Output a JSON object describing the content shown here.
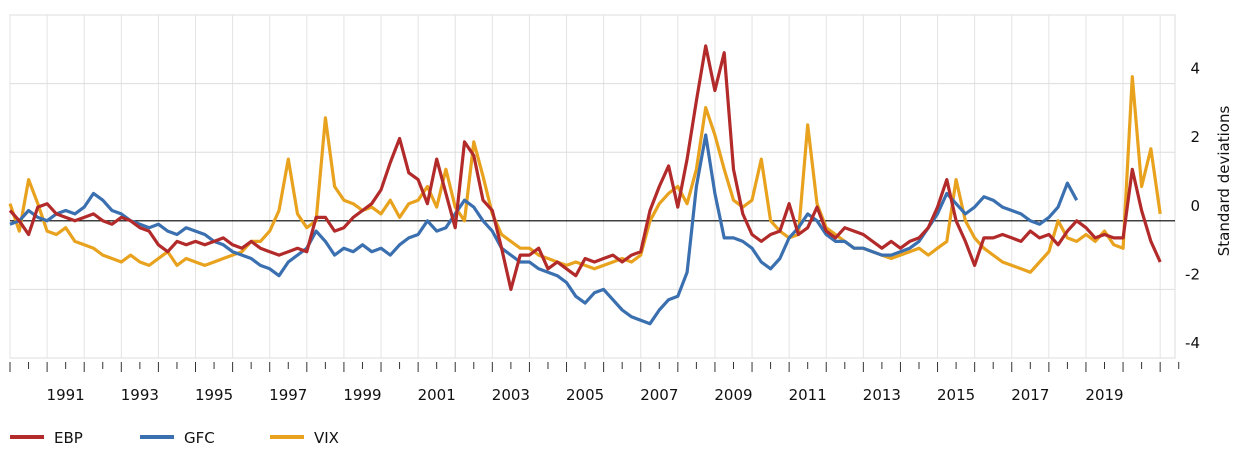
{
  "chart_data": {
    "type": "line",
    "y_label": "Standard deviations",
    "x": [
      1990,
      1990.25,
      1990.5,
      1990.75,
      1991,
      1991.25,
      1991.5,
      1991.75,
      1992,
      1992.25,
      1992.5,
      1992.75,
      1993,
      1993.25,
      1993.5,
      1993.75,
      1994,
      1994.25,
      1994.5,
      1994.75,
      1995,
      1995.25,
      1995.5,
      1995.75,
      1996,
      1996.25,
      1996.5,
      1996.75,
      1997,
      1997.25,
      1997.5,
      1997.75,
      1998,
      1998.25,
      1998.5,
      1998.75,
      1999,
      1999.25,
      1999.5,
      1999.75,
      2000,
      2000.25,
      2000.5,
      2000.75,
      2001,
      2001.25,
      2001.5,
      2001.75,
      2002,
      2002.25,
      2002.5,
      2002.75,
      2003,
      2003.25,
      2003.5,
      2003.75,
      2004,
      2004.25,
      2004.5,
      2004.75,
      2005,
      2005.25,
      2005.5,
      2005.75,
      2006,
      2006.25,
      2006.5,
      2006.75,
      2007,
      2007.25,
      2007.5,
      2007.75,
      2008,
      2008.25,
      2008.5,
      2008.75,
      2009,
      2009.25,
      2009.5,
      2009.75,
      2010,
      2010.25,
      2010.5,
      2010.75,
      2011,
      2011.25,
      2011.5,
      2011.75,
      2012,
      2012.25,
      2012.5,
      2012.75,
      2013,
      2013.25,
      2013.5,
      2013.75,
      2014,
      2014.25,
      2014.5,
      2014.75,
      2015,
      2015.25,
      2015.5,
      2015.75,
      2016,
      2016.25,
      2016.5,
      2016.75,
      2017,
      2017.25,
      2017.5,
      2017.75,
      2018,
      2018.25,
      2018.5,
      2018.75,
      2019,
      2019.25,
      2019.5,
      2019.75,
      2020,
      2020.25,
      2020.5,
      2020.75,
      2021
    ],
    "series": [
      {
        "name": "EBP",
        "color": "#b22a2a",
        "values": [
          0.3,
          0.0,
          -0.4,
          0.4,
          0.5,
          0.2,
          0.1,
          0.0,
          0.1,
          0.2,
          0.0,
          -0.1,
          0.1,
          0.0,
          -0.2,
          -0.3,
          -0.7,
          -0.9,
          -0.6,
          -0.7,
          -0.6,
          -0.7,
          -0.6,
          -0.5,
          -0.7,
          -0.8,
          -0.6,
          -0.8,
          -0.9,
          -1.0,
          -0.9,
          -0.8,
          -0.9,
          0.1,
          0.1,
          -0.3,
          -0.2,
          0.1,
          0.3,
          0.5,
          0.9,
          1.7,
          2.4,
          1.4,
          1.2,
          0.5,
          1.8,
          0.8,
          -0.2,
          2.3,
          1.9,
          0.6,
          0.3,
          -0.8,
          -2.0,
          -1.0,
          -1.0,
          -0.8,
          -1.4,
          -1.2,
          -1.4,
          -1.6,
          -1.1,
          -1.2,
          -1.1,
          -1.0,
          -1.2,
          -1.0,
          -0.9,
          0.3,
          1.0,
          1.6,
          0.4,
          1.8,
          3.5,
          5.1,
          3.8,
          4.9,
          1.5,
          0.2,
          -0.4,
          -0.6,
          -0.4,
          -0.3,
          0.5,
          -0.4,
          -0.2,
          0.4,
          -0.3,
          -0.5,
          -0.2,
          -0.3,
          -0.4,
          -0.6,
          -0.8,
          -0.6,
          -0.8,
          -0.6,
          -0.5,
          -0.2,
          0.4,
          1.2,
          0.0,
          -0.6,
          -1.3,
          -0.5,
          -0.5,
          -0.4,
          -0.5,
          -0.6,
          -0.3,
          -0.5,
          -0.4,
          -0.7,
          -0.3,
          0.0,
          -0.2,
          -0.5,
          -0.4,
          -0.5,
          -0.5,
          1.5,
          0.3,
          -0.6,
          -1.2
        ]
      },
      {
        "name": "GFC",
        "color": "#3a6fb0",
        "values": [
          -0.1,
          0.0,
          0.3,
          0.1,
          0.0,
          0.2,
          0.3,
          0.2,
          0.4,
          0.8,
          0.6,
          0.3,
          0.2,
          0.0,
          -0.1,
          -0.2,
          -0.1,
          -0.3,
          -0.4,
          -0.2,
          -0.3,
          -0.4,
          -0.6,
          -0.7,
          -0.9,
          -1.0,
          -1.1,
          -1.3,
          -1.4,
          -1.6,
          -1.2,
          -1.0,
          -0.8,
          -0.3,
          -0.6,
          -1.0,
          -0.8,
          -0.9,
          -0.7,
          -0.9,
          -0.8,
          -1.0,
          -0.7,
          -0.5,
          -0.4,
          0.0,
          -0.3,
          -0.2,
          0.2,
          0.6,
          0.4,
          0.0,
          -0.3,
          -0.8,
          -1.0,
          -1.2,
          -1.2,
          -1.4,
          -1.5,
          -1.6,
          -1.8,
          -2.2,
          -2.4,
          -2.1,
          -2.0,
          -2.3,
          -2.6,
          -2.8,
          -2.9,
          -3.0,
          -2.6,
          -2.3,
          -2.2,
          -1.5,
          1.0,
          2.5,
          0.8,
          -0.5,
          -0.5,
          -0.6,
          -0.8,
          -1.2,
          -1.4,
          -1.1,
          -0.5,
          -0.2,
          0.2,
          0.0,
          -0.4,
          -0.6,
          -0.6,
          -0.8,
          -0.8,
          -0.9,
          -1.0,
          -1.0,
          -0.9,
          -0.8,
          -0.6,
          -0.2,
          0.2,
          0.8,
          0.5,
          0.2,
          0.4,
          0.7,
          0.6,
          0.4,
          0.3,
          0.2,
          0.0,
          -0.1,
          0.1,
          0.4,
          1.1,
          0.6,
          null,
          null,
          null,
          null,
          null,
          null,
          null,
          null,
          null
        ]
      },
      {
        "name": "VIX",
        "color": "#e8a21e",
        "values": [
          0.5,
          -0.3,
          1.2,
          0.5,
          -0.3,
          -0.4,
          -0.2,
          -0.6,
          -0.7,
          -0.8,
          -1.0,
          -1.1,
          -1.2,
          -1.0,
          -1.2,
          -1.3,
          -1.1,
          -0.9,
          -1.3,
          -1.1,
          -1.2,
          -1.3,
          -1.2,
          -1.1,
          -1.0,
          -0.9,
          -0.6,
          -0.6,
          -0.3,
          0.3,
          1.8,
          0.2,
          -0.2,
          0.0,
          3.0,
          1.0,
          0.6,
          0.5,
          0.3,
          0.4,
          0.2,
          0.6,
          0.1,
          0.5,
          0.6,
          1.0,
          0.4,
          1.5,
          0.4,
          0.0,
          2.3,
          1.3,
          0.2,
          -0.4,
          -0.6,
          -0.8,
          -0.8,
          -1.0,
          -1.1,
          -1.2,
          -1.3,
          -1.2,
          -1.3,
          -1.4,
          -1.3,
          -1.2,
          -1.1,
          -1.2,
          -1.0,
          0.0,
          0.5,
          0.8,
          1.0,
          0.5,
          1.5,
          3.3,
          2.5,
          1.5,
          0.6,
          0.4,
          0.6,
          1.8,
          0.0,
          -0.3,
          -0.5,
          -0.4,
          2.8,
          0.5,
          -0.2,
          -0.4,
          -0.6,
          -0.8,
          -0.8,
          -0.9,
          -1.0,
          -1.1,
          -1.0,
          -0.9,
          -0.8,
          -1.0,
          -0.8,
          -0.6,
          1.2,
          0.0,
          -0.5,
          -0.8,
          -1.0,
          -1.2,
          -1.3,
          -1.4,
          -1.5,
          -1.2,
          -0.9,
          0.0,
          -0.5,
          -0.6,
          -0.4,
          -0.6,
          -0.3,
          -0.7,
          -0.8,
          4.2,
          1.0,
          2.1,
          0.2
        ]
      }
    ],
    "xlim": [
      1990,
      2021.4
    ],
    "xticks": [
      1991,
      1993,
      1995,
      1997,
      1999,
      2001,
      2003,
      2005,
      2007,
      2009,
      2011,
      2013,
      2015,
      2017,
      2019
    ],
    "ylim": [
      -4,
      6
    ],
    "yticks": [
      -4,
      -2,
      0,
      2,
      4
    ],
    "grid": true
  }
}
